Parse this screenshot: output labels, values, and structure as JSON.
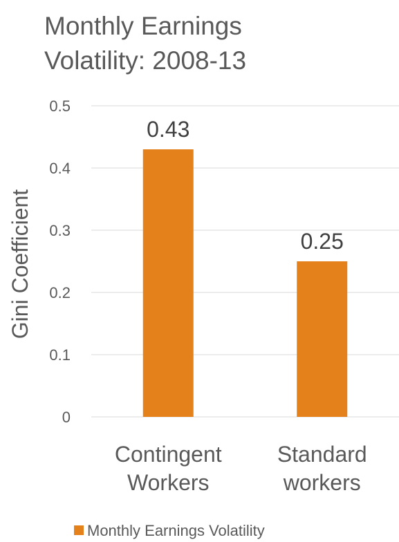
{
  "chart_data": {
    "type": "bar",
    "title_lines": [
      "Monthly Earnings",
      "Volatility: 2008-13"
    ],
    "ylabel": "Gini Coefficient",
    "xlabel": "",
    "categories": [
      [
        "Contingent",
        "Workers"
      ],
      [
        "Standard",
        "workers"
      ]
    ],
    "series": [
      {
        "name": "Monthly Earnings Volatility",
        "values": [
          0.43,
          0.25
        ],
        "color": "#e5811a"
      }
    ],
    "data_labels": [
      "0.43",
      "0.25"
    ],
    "ylim": [
      0,
      0.5
    ],
    "yticks": [
      0,
      0.1,
      0.2,
      0.3,
      0.4,
      0.5
    ],
    "ytick_labels": [
      "0",
      "0.1",
      "0.2",
      "0.3",
      "0.4",
      "0.5"
    ],
    "grid": true,
    "legend_position": "bottom"
  }
}
